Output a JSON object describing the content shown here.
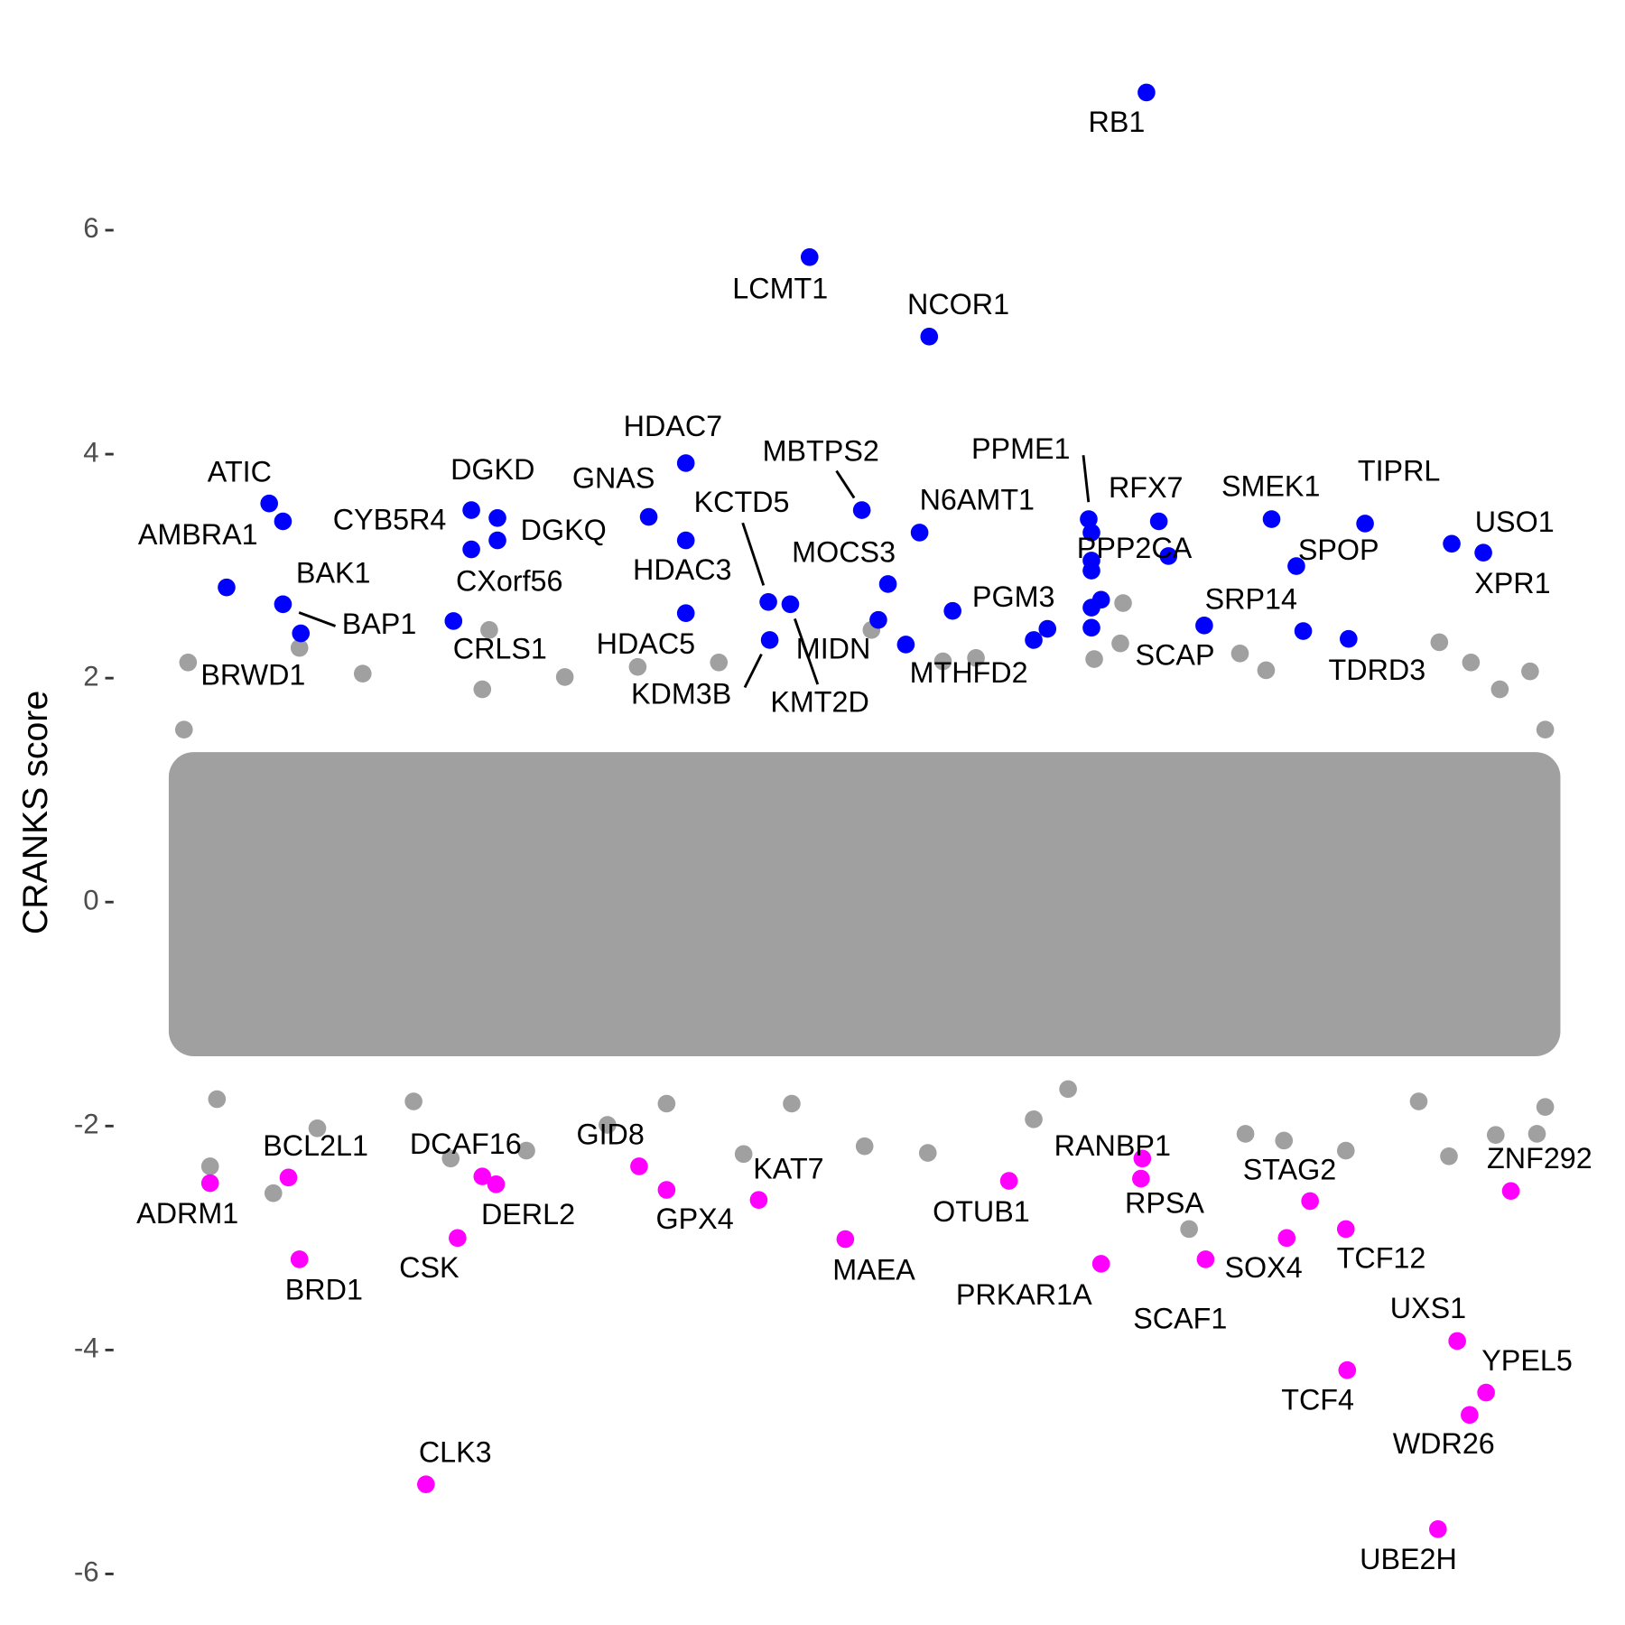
{
  "chart_data": {
    "type": "scatter",
    "y_label": "CRANKS score",
    "xlim": [
      0,
      100
    ],
    "ylim": [
      -6.1,
      7.6
    ],
    "yticks": [
      -6,
      -4,
      -2,
      0,
      2,
      4,
      6
    ],
    "series": [
      {
        "color": "#a0a0a0",
        "x": [
          0.8,
          8.9,
          13.5,
          22.2,
          22.7,
          28.2,
          33.5,
          39.4,
          50.5,
          55.7,
          58.1,
          68.8,
          68.6,
          77.3,
          79.2,
          91.8,
          94.1,
          98.4,
          96.2,
          99.5,
          0.5,
          66.7,
          2.9,
          2.4,
          7.0,
          10.2,
          17.2,
          19.9,
          25.4,
          31.3,
          41.2,
          50.0,
          54.6,
          62.3,
          73.6,
          77.7,
          85.0,
          92.5,
          95.9,
          98.9,
          99.5,
          90.3,
          80.5,
          64.8,
          44.7,
          35.6
        ],
        "values": [
          2.14,
          2.27,
          2.04,
          1.9,
          2.43,
          2.01,
          2.1,
          2.14,
          2.43,
          2.15,
          2.18,
          2.67,
          2.31,
          2.22,
          2.07,
          2.32,
          2.14,
          2.06,
          1.9,
          1.54,
          1.54,
          2.17,
          -1.76,
          -2.36,
          -2.6,
          -2.02,
          -1.78,
          -2.29,
          -2.22,
          -1.99,
          -2.25,
          -2.18,
          -2.24,
          -1.94,
          -2.92,
          -2.07,
          -2.22,
          -2.27,
          -2.08,
          -2.07,
          -1.83,
          -1.78,
          -2.13,
          -1.67,
          -1.8,
          -1.8
        ]
      },
      {
        "color": "#0000ff",
        "x": [
          70.5,
          46.0,
          54.7,
          37.0,
          49.8,
          6.7,
          7.7,
          21.4,
          23.3,
          21.4,
          23.3,
          34.3,
          37.0,
          43.0,
          37.0,
          44.6,
          43.1,
          51.0,
          51.7,
          53.0,
          54.0,
          56.4,
          66.3,
          66.5,
          71.4,
          72.1,
          79.6,
          81.4,
          74.7,
          86.4,
          92.7,
          95.0,
          85.2,
          7.7,
          9.0,
          3.6,
          20.1,
          66.5,
          66.5,
          67.2,
          66.5,
          66.5,
          62.3,
          63.3,
          81.9
        ],
        "values": [
          7.23,
          5.76,
          5.05,
          3.92,
          3.5,
          3.56,
          3.4,
          3.5,
          3.43,
          3.15,
          3.23,
          3.44,
          3.23,
          2.68,
          2.58,
          2.66,
          2.34,
          2.52,
          2.84,
          2.3,
          3.3,
          2.6,
          3.42,
          3.3,
          3.4,
          3.09,
          3.42,
          3.0,
          2.47,
          3.38,
          3.2,
          3.12,
          2.35,
          2.66,
          2.4,
          2.81,
          2.51,
          3.05,
          2.96,
          2.7,
          2.63,
          2.45,
          2.34,
          2.44,
          2.42
        ],
        "labels": [
          "RB1",
          "LCMT1",
          "NCOR1",
          "HDAC7",
          "MBTPS2",
          "ATIC",
          "AMBRA1",
          "DGKD",
          "DGKQ",
          "CYB5R4",
          "CXorf56",
          "GNAS",
          "HDAC3",
          "KCTD5",
          "HDAC5",
          "KMT2D",
          "KDM3B",
          "MIDN",
          "MOCS3",
          "MTHFD2",
          "N6AMT1",
          "PGM3",
          "PPME1",
          "PPP2CA",
          "RFX7",
          "SCAP",
          "SMEK1",
          "SPOP",
          "SRP14",
          "TIPRL",
          "USO1",
          "XPR1",
          "TDRD3",
          "BAK1",
          "BAP1",
          "BRWD1",
          "CRLS1",
          null,
          null,
          null,
          null,
          null,
          null,
          null,
          null
        ]
      },
      {
        "color": "#ff00ff",
        "x": [
          2.4,
          8.1,
          8.9,
          22.2,
          23.2,
          20.4,
          18.1,
          33.6,
          35.6,
          42.3,
          48.6,
          60.5,
          70.2,
          70.1,
          67.2,
          74.8,
          82.4,
          80.7,
          85.0,
          93.1,
          85.1,
          95.2,
          94.0,
          91.7,
          97.0
        ],
        "values": [
          -2.51,
          -2.46,
          -3.19,
          -2.45,
          -2.52,
          -3.0,
          -5.2,
          -2.36,
          -2.57,
          -2.66,
          -3.01,
          -2.49,
          -2.29,
          -2.47,
          -3.23,
          -3.19,
          -2.67,
          -3.0,
          -2.92,
          -3.92,
          -4.18,
          -4.38,
          -4.58,
          -5.6,
          -2.58
        ],
        "labels": [
          "ADRM1",
          "BCL2L1",
          "BRD1",
          "DCAF16",
          "DERL2",
          "CSK",
          "CLK3",
          "GID8",
          "GPX4",
          "KAT7",
          "MAEA",
          "OTUB1",
          "RANBP1",
          "RPSA",
          "PRKAR1A",
          "SCAF1",
          "STAG2",
          "SOX4",
          "TCF12",
          "UXS1",
          "TCF4",
          "YPEL5",
          "WDR26",
          "UBE2H",
          "ZNF292"
        ]
      }
    ]
  }
}
